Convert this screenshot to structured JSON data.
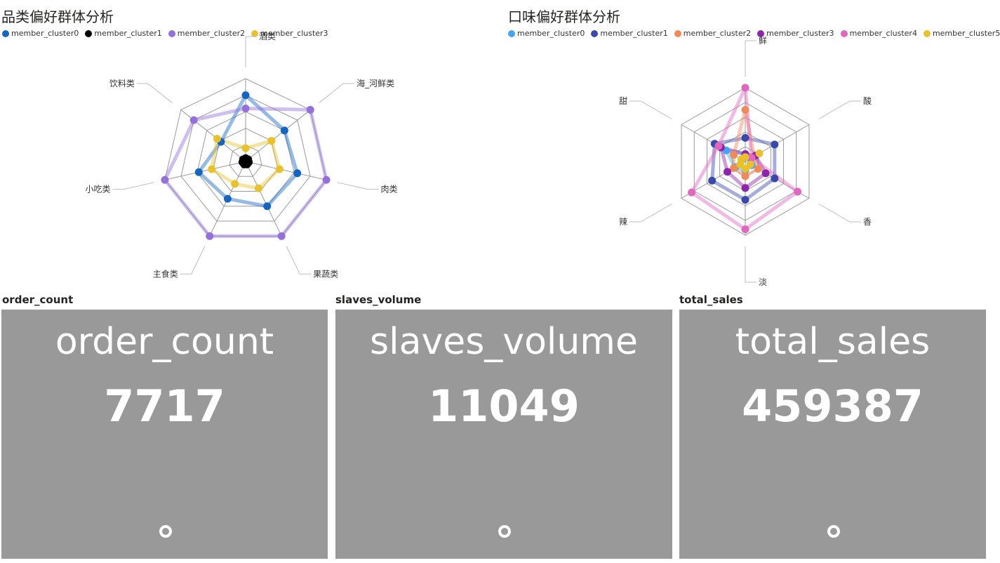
{
  "chart_data": [
    {
      "type": "radar",
      "title": "品类偏好群体分析",
      "categories": [
        "酒类",
        "海_河鲜类",
        "肉类",
        "果蔬类",
        "主食类",
        "小吃类",
        "饮料类"
      ],
      "rmax": 5,
      "rings": 5,
      "series": [
        {
          "name": "member_cluster0",
          "color": "#1565c0",
          "values": [
            4.0,
            3.0,
            3.2,
            3.0,
            2.5,
            2.9,
            1.9
          ]
        },
        {
          "name": "member_cluster1",
          "color": "#000000",
          "values": [
            0.2,
            0.2,
            0.2,
            0.2,
            0.2,
            0.2,
            0.2
          ]
        },
        {
          "name": "member_cluster2",
          "color": "#9370db",
          "values": [
            3.2,
            5.0,
            5.0,
            5.0,
            5.0,
            5.0,
            4.0
          ]
        },
        {
          "name": "member_cluster3",
          "color": "#e8c12d",
          "values": [
            0.8,
            2.0,
            2.1,
            1.8,
            1.5,
            2.1,
            2.2
          ]
        }
      ]
    },
    {
      "type": "radar",
      "title": "口味偏好群体分析",
      "categories": [
        "鲜",
        "酸",
        "香",
        "淡",
        "辣",
        "甜"
      ],
      "rmax": 5,
      "rings": 5,
      "series": [
        {
          "name": "member_cluster0",
          "color": "#42a5f5",
          "values": [
            0.5,
            0.4,
            0.5,
            0.6,
            0.8,
            1.5
          ]
        },
        {
          "name": "member_cluster1",
          "color": "#3949ab",
          "values": [
            1.6,
            2.3,
            2.3,
            2.6,
            2.6,
            2.4
          ]
        },
        {
          "name": "member_cluster2",
          "color": "#ef8a5a",
          "values": [
            3.5,
            0.7,
            1.0,
            1.0,
            0.9,
            0.9
          ]
        },
        {
          "name": "member_cluster3",
          "color": "#8e24aa",
          "values": [
            0.5,
            0.8,
            1.6,
            1.8,
            1.4,
            1.9
          ]
        },
        {
          "name": "member_cluster4",
          "color": "#e066c0",
          "values": [
            5.0,
            0.5,
            4.1,
            4.6,
            4.2,
            2.1
          ]
        },
        {
          "name": "member_cluster5",
          "color": "#e8c12d",
          "values": [
            0.3,
            1.1,
            0.4,
            0.5,
            0.4,
            0.3
          ]
        }
      ]
    }
  ],
  "kpis": [
    {
      "label": "order_count",
      "name": "order_count",
      "value": "7717"
    },
    {
      "label": "slaves_volume",
      "name": "slaves_volume",
      "value": "11049"
    },
    {
      "label": "total_sales",
      "name": "total_sales",
      "value": "459387"
    }
  ]
}
